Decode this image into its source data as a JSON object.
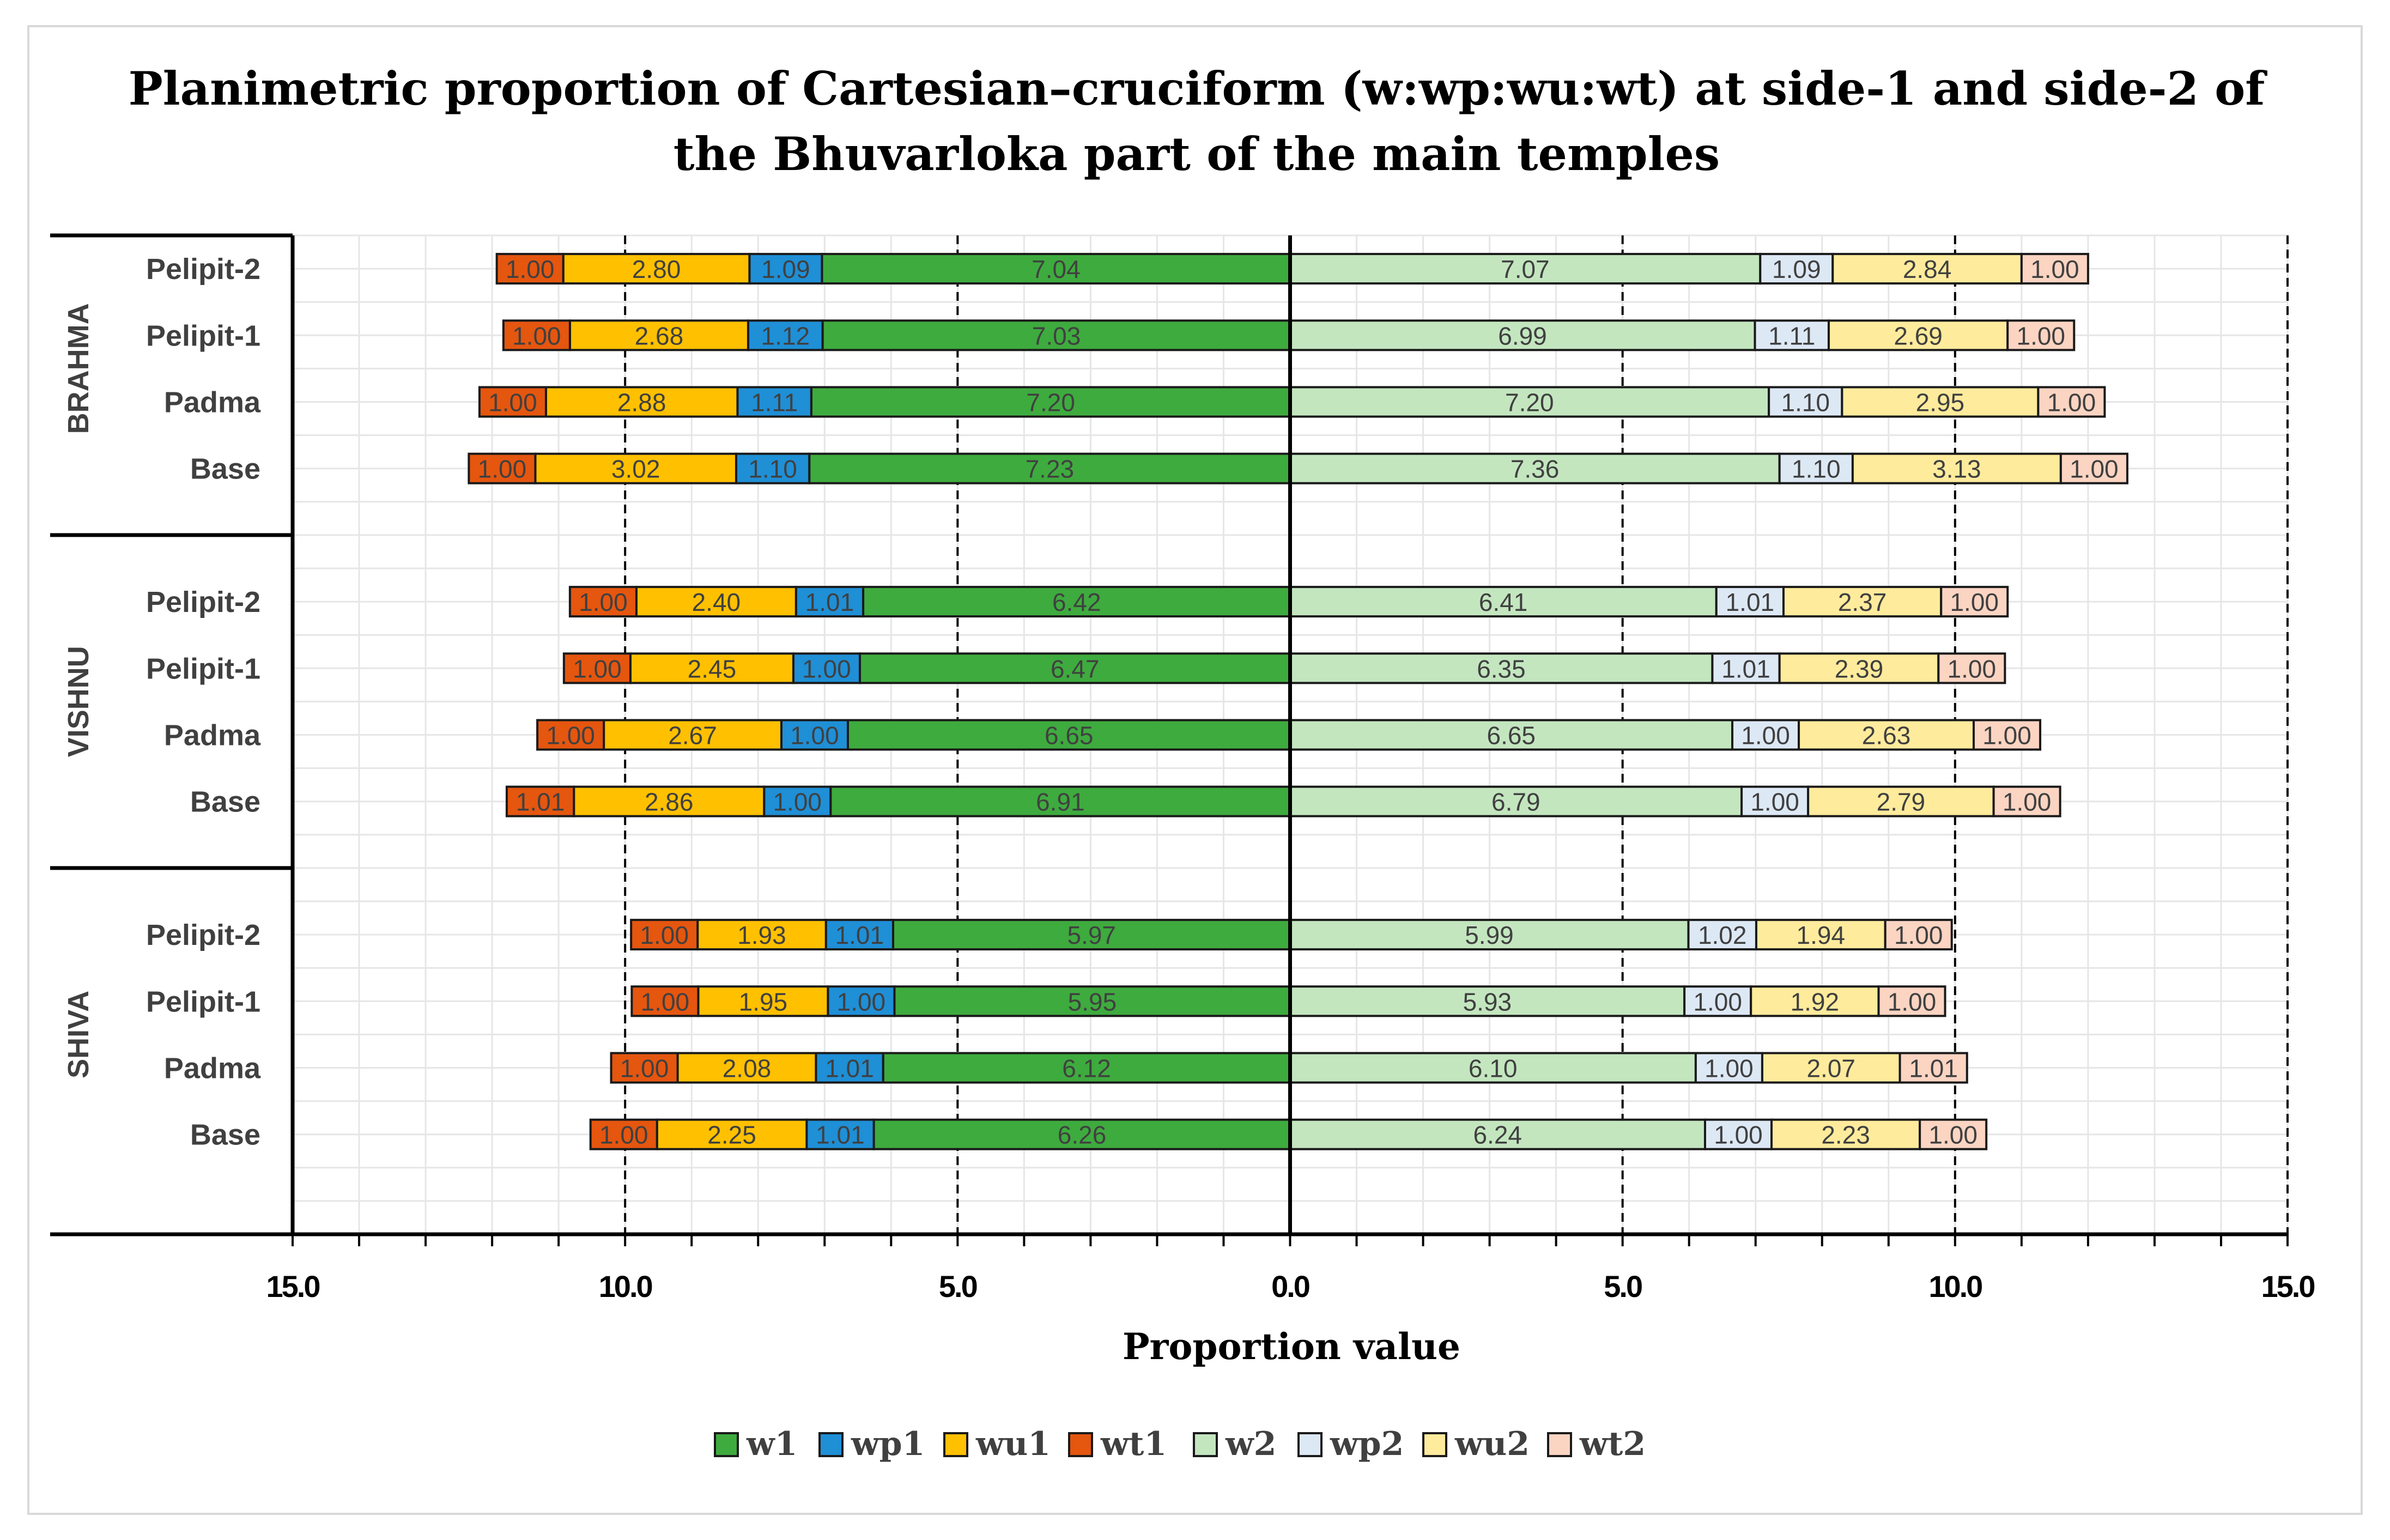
{
  "chart_data": {
    "type": "bar",
    "orientation": "horizontal-diverging",
    "title_lines": [
      "Planimetric  proportion of Cartesian–cruciform (w:wp:wu:wt) at side-1 and side-2 of",
      "the Bhuvarloka part of the main temples"
    ],
    "xlabel": "Proportion value",
    "xlim": [
      -15,
      15
    ],
    "x_ticks": [
      -15,
      -10,
      -5,
      0,
      5,
      10,
      15
    ],
    "x_tick_labels": [
      "15.0",
      "10.0",
      "5.0",
      "0.0",
      "5.0",
      "10.0",
      "15.0"
    ],
    "grid": true,
    "legend_position": "bottom",
    "series_order": [
      "w1",
      "wp1",
      "wu1",
      "wt1",
      "w2",
      "wp2",
      "wu2",
      "wt2"
    ],
    "colors": {
      "w1": "#3eab3e",
      "wp1": "#1f8fd6",
      "wu1": "#ffc000",
      "wt1": "#e5560f",
      "w2": "#c3e6bf",
      "wp2": "#dde8f5",
      "wu2": "#ffeb9c",
      "wt2": "#fbd4c2"
    },
    "groups": [
      {
        "name": "BRAHMA",
        "categories": [
          {
            "label": "Pelipit-2",
            "w1": 7.04,
            "wp1": 1.09,
            "wu1": 2.8,
            "wt1": 1.0,
            "w2": 7.07,
            "wp2": 1.09,
            "wu2": 2.84,
            "wt2": 1.0
          },
          {
            "label": "Pelipit-1",
            "w1": 7.03,
            "wp1": 1.12,
            "wu1": 2.68,
            "wt1": 1.0,
            "w2": 6.99,
            "wp2": 1.11,
            "wu2": 2.69,
            "wt2": 1.0
          },
          {
            "label": "Padma",
            "w1": 7.2,
            "wp1": 1.11,
            "wu1": 2.88,
            "wt1": 1.0,
            "w2": 7.2,
            "wp2": 1.1,
            "wu2": 2.95,
            "wt2": 1.0
          },
          {
            "label": "Base",
            "w1": 7.23,
            "wp1": 1.1,
            "wu1": 3.02,
            "wt1": 1.0,
            "w2": 7.36,
            "wp2": 1.1,
            "wu2": 3.13,
            "wt2": 1.0
          }
        ]
      },
      {
        "name": "VISHNU",
        "categories": [
          {
            "label": "Pelipit-2",
            "w1": 6.42,
            "wp1": 1.01,
            "wu1": 2.4,
            "wt1": 1.0,
            "w2": 6.41,
            "wp2": 1.01,
            "wu2": 2.37,
            "wt2": 1.0
          },
          {
            "label": "Pelipit-1",
            "w1": 6.47,
            "wp1": 1.0,
            "wu1": 2.45,
            "wt1": 1.0,
            "w2": 6.35,
            "wp2": 1.01,
            "wu2": 2.39,
            "wt2": 1.0
          },
          {
            "label": "Padma",
            "w1": 6.65,
            "wp1": 1.0,
            "wu1": 2.67,
            "wt1": 1.0,
            "w2": 6.65,
            "wp2": 1.0,
            "wu2": 2.63,
            "wt2": 1.0
          },
          {
            "label": "Base",
            "w1": 6.91,
            "wp1": 1.0,
            "wu1": 2.86,
            "wt1": 1.01,
            "w2": 6.79,
            "wp2": 1.0,
            "wu2": 2.79,
            "wt2": 1.0
          }
        ]
      },
      {
        "name": "SHIVA",
        "categories": [
          {
            "label": "Pelipit-2",
            "w1": 5.97,
            "wp1": 1.01,
            "wu1": 1.93,
            "wt1": 1.0,
            "w2": 5.99,
            "wp2": 1.02,
            "wu2": 1.94,
            "wt2": 1.0
          },
          {
            "label": "Pelipit-1",
            "w1": 5.95,
            "wp1": 1.0,
            "wu1": 1.95,
            "wt1": 1.0,
            "w2": 5.93,
            "wp2": 1.0,
            "wu2": 1.92,
            "wt2": 1.0
          },
          {
            "label": "Padma",
            "w1": 6.12,
            "wp1": 1.01,
            "wu1": 2.08,
            "wt1": 1.0,
            "w2": 6.1,
            "wp2": 1.0,
            "wu2": 2.07,
            "wt2": 1.01
          },
          {
            "label": "Base",
            "w1": 6.26,
            "wp1": 1.01,
            "wu1": 2.25,
            "wt1": 1.0,
            "w2": 6.24,
            "wp2": 1.0,
            "wu2": 2.23,
            "wt2": 1.0
          }
        ]
      }
    ]
  }
}
